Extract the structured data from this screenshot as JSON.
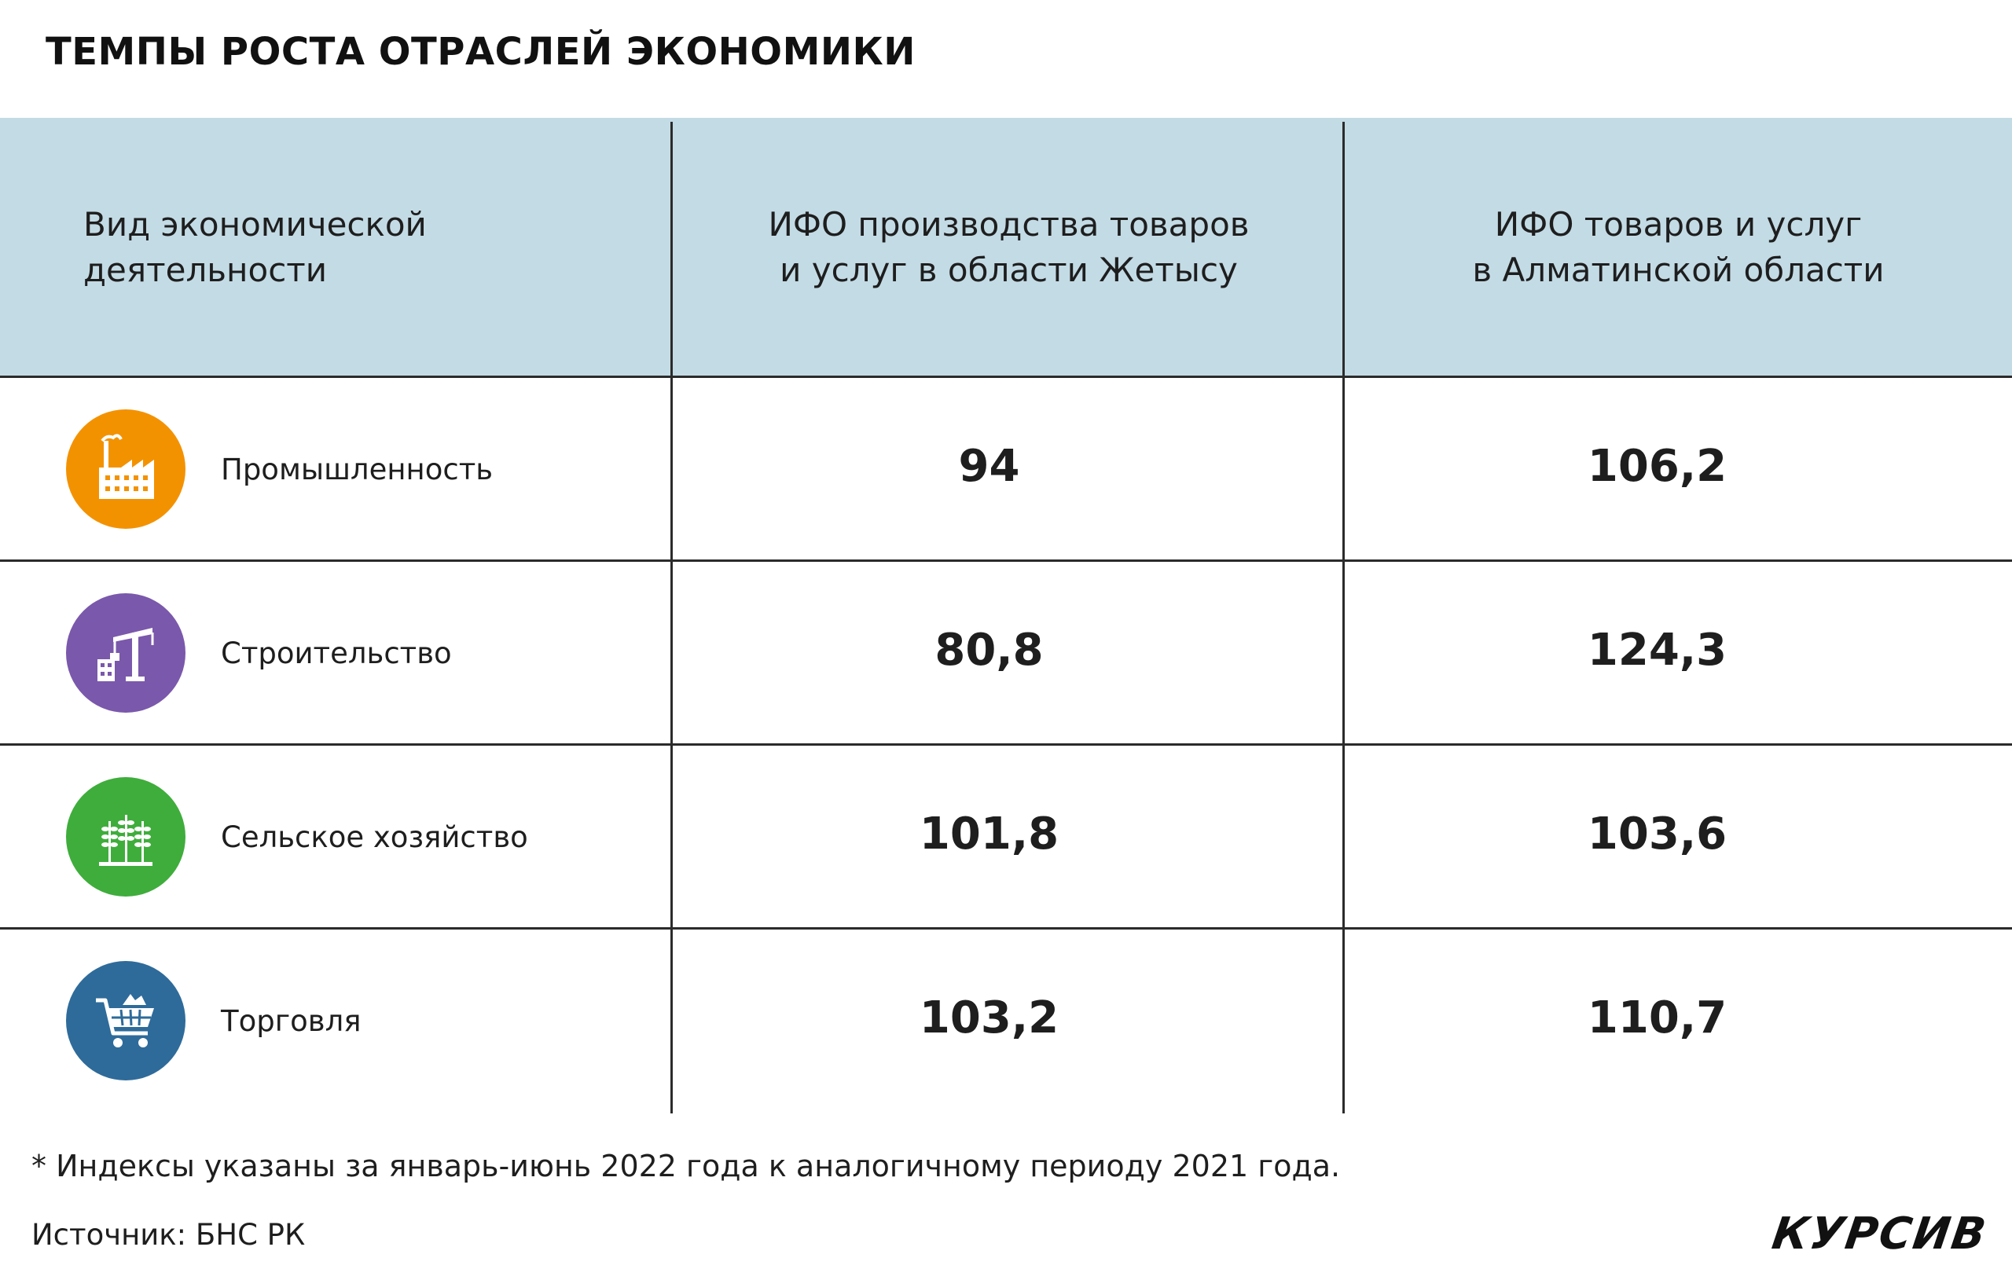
{
  "title": "ТЕМПЫ РОСТА ОТРАСЛЕЙ ЭКОНОМИКИ",
  "headers": {
    "col1": [
      "Вид экономической",
      "деятельности"
    ],
    "col2": [
      "ИФО производства товаров",
      "и услуг в области Жетысу"
    ],
    "col3": [
      "ИФО товаров и услуг",
      "в Алматинской области"
    ]
  },
  "rows": [
    {
      "label": "Промышленность",
      "icon": "factory-icon",
      "icon_color": "#f39200",
      "zhetysu": "94",
      "almaty": "106,2"
    },
    {
      "label": "Строительство",
      "icon": "construction-crane-icon",
      "icon_color": "#7a58ab",
      "zhetysu": "80,8",
      "almaty": "124,3"
    },
    {
      "label": "Сельское хозяйство",
      "icon": "wheat-icon",
      "icon_color": "#3fad3c",
      "zhetysu": "101,8",
      "almaty": "103,6"
    },
    {
      "label": "Торговля",
      "icon": "shopping-cart-icon",
      "icon_color": "#2e6b9a",
      "zhetysu": "103,2",
      "almaty": "110,7"
    }
  ],
  "footnote": "* Индексы указаны за январь-июнь 2022 года к аналогичному периоду 2021 года.",
  "source": "Источник: БНС РК",
  "logo": "КУРСИВ",
  "colors": {
    "header_bg": "#c3dbe5",
    "lines": "#2b2b2b"
  },
  "chart_data": {
    "type": "table",
    "title": "ТЕМПЫ РОСТА ОТРАСЛЕЙ ЭКОНОМИКИ",
    "columns": [
      "Вид экономической деятельности",
      "ИФО производства товаров и услуг в области Жетысу",
      "ИФО товаров и услуг в Алматинской области"
    ],
    "categories": [
      "Промышленность",
      "Строительство",
      "Сельское хозяйство",
      "Торговля"
    ],
    "series": [
      {
        "name": "ИФО производства товаров и услуг в области Жетысу",
        "values": [
          94,
          80.8,
          101.8,
          103.2
        ]
      },
      {
        "name": "ИФО товаров и услуг в Алматинской области",
        "values": [
          106.2,
          124.3,
          103.6,
          110.7
        ]
      }
    ]
  }
}
